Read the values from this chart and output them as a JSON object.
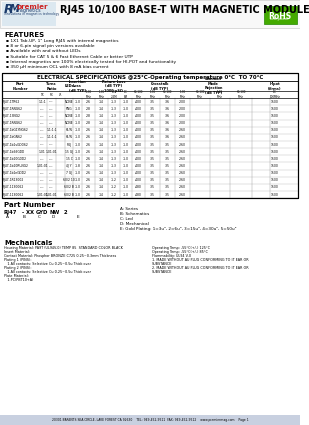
{
  "title": "RJ45 10/100 BASE-T WITH MAGNETIC MODULE",
  "rohs_text": "RoHS",
  "features_title": "FEATURES",
  "features": [
    "1X1 Tab-UP, 1\" Long RJ45 with internal magnetics",
    "8 or 6-pin signal pin versions available",
    "Available with and without LEDs",
    "Suitable for CAT 5 & 6 Fast Ethernet Cable or better UTP",
    "Internal magnetics are 100% electrically tested for HI-POT and functionality",
    "350 μH minimum OCL with 8 mA bias current"
  ],
  "elec_spec_title": "ELECTRICAL SPECIFICATIONS @25°C-Operating temperature 0°C  TO 70°C",
  "part_number_title": "Part Number",
  "part_number_legend": [
    "A: Series",
    "B: Schematics",
    "C: Led",
    "D: Mechanical",
    "E: Gold Plating: 1=3u\", 2=6u\", 3=15u\", 4=30u\", 5=50u\""
  ],
  "mechanicals_title": "Mechanicals",
  "mech_left": [
    "Housing Material: PA9T (UL94V-0) TEMP 85  STANDARD COLOR BLACK",
    "Insert Material:",
    "Contact Material: Phosphor BRONZE C725 0.25~0.3mm Thickness",
    "Plating 1 (PINS):",
    "   1.All contacts: Selective Cu 0.25~0.5u Thick over",
    "Plating 2 (PINS):",
    "   1.All contacts: Selective Cu 0.25~0.5u Thick over",
    "Plate Material:",
    "   1.PC(PBT10+A)"
  ],
  "mech_right": [
    "Operating Temp: -55°C(+/-) 125°C",
    "Operating Temp: -55°C(+/-) 85°C",
    "Flammability: UL94 V-0",
    "1. MADE WITHOUT AU PLUG CONFORMING TO IT EAR OR",
    "SUBSTANCE",
    "2. MADE WITHOUT AU PLUG CONFORMING TO IT EAR OR",
    "SUBSTANCE"
  ],
  "footer_text": "20301 BARENTS SEA CIRCLE, LAKE FOREST CA 92630    TEL: 949-452-9511  FAX: 949-452-9512    www.premiermag.com    Page 1",
  "bg_color": "#ffffff",
  "logo_blue": "#1a3a6a",
  "logo_red": "#cc2222",
  "rohs_green": "#44aa00",
  "table_header_bg": "#e8e8e8",
  "table_subheader_bg": "#f0f0f0",
  "table_alt1": "#ffffff",
  "table_alt2": "#e8eef8",
  "footer_bg": "#c8d0e0",
  "border_color": "#000000",
  "grid_color": "#999999",
  "highlight_orange": "#f0c040",
  "watermark_blue": "#6090c0"
}
